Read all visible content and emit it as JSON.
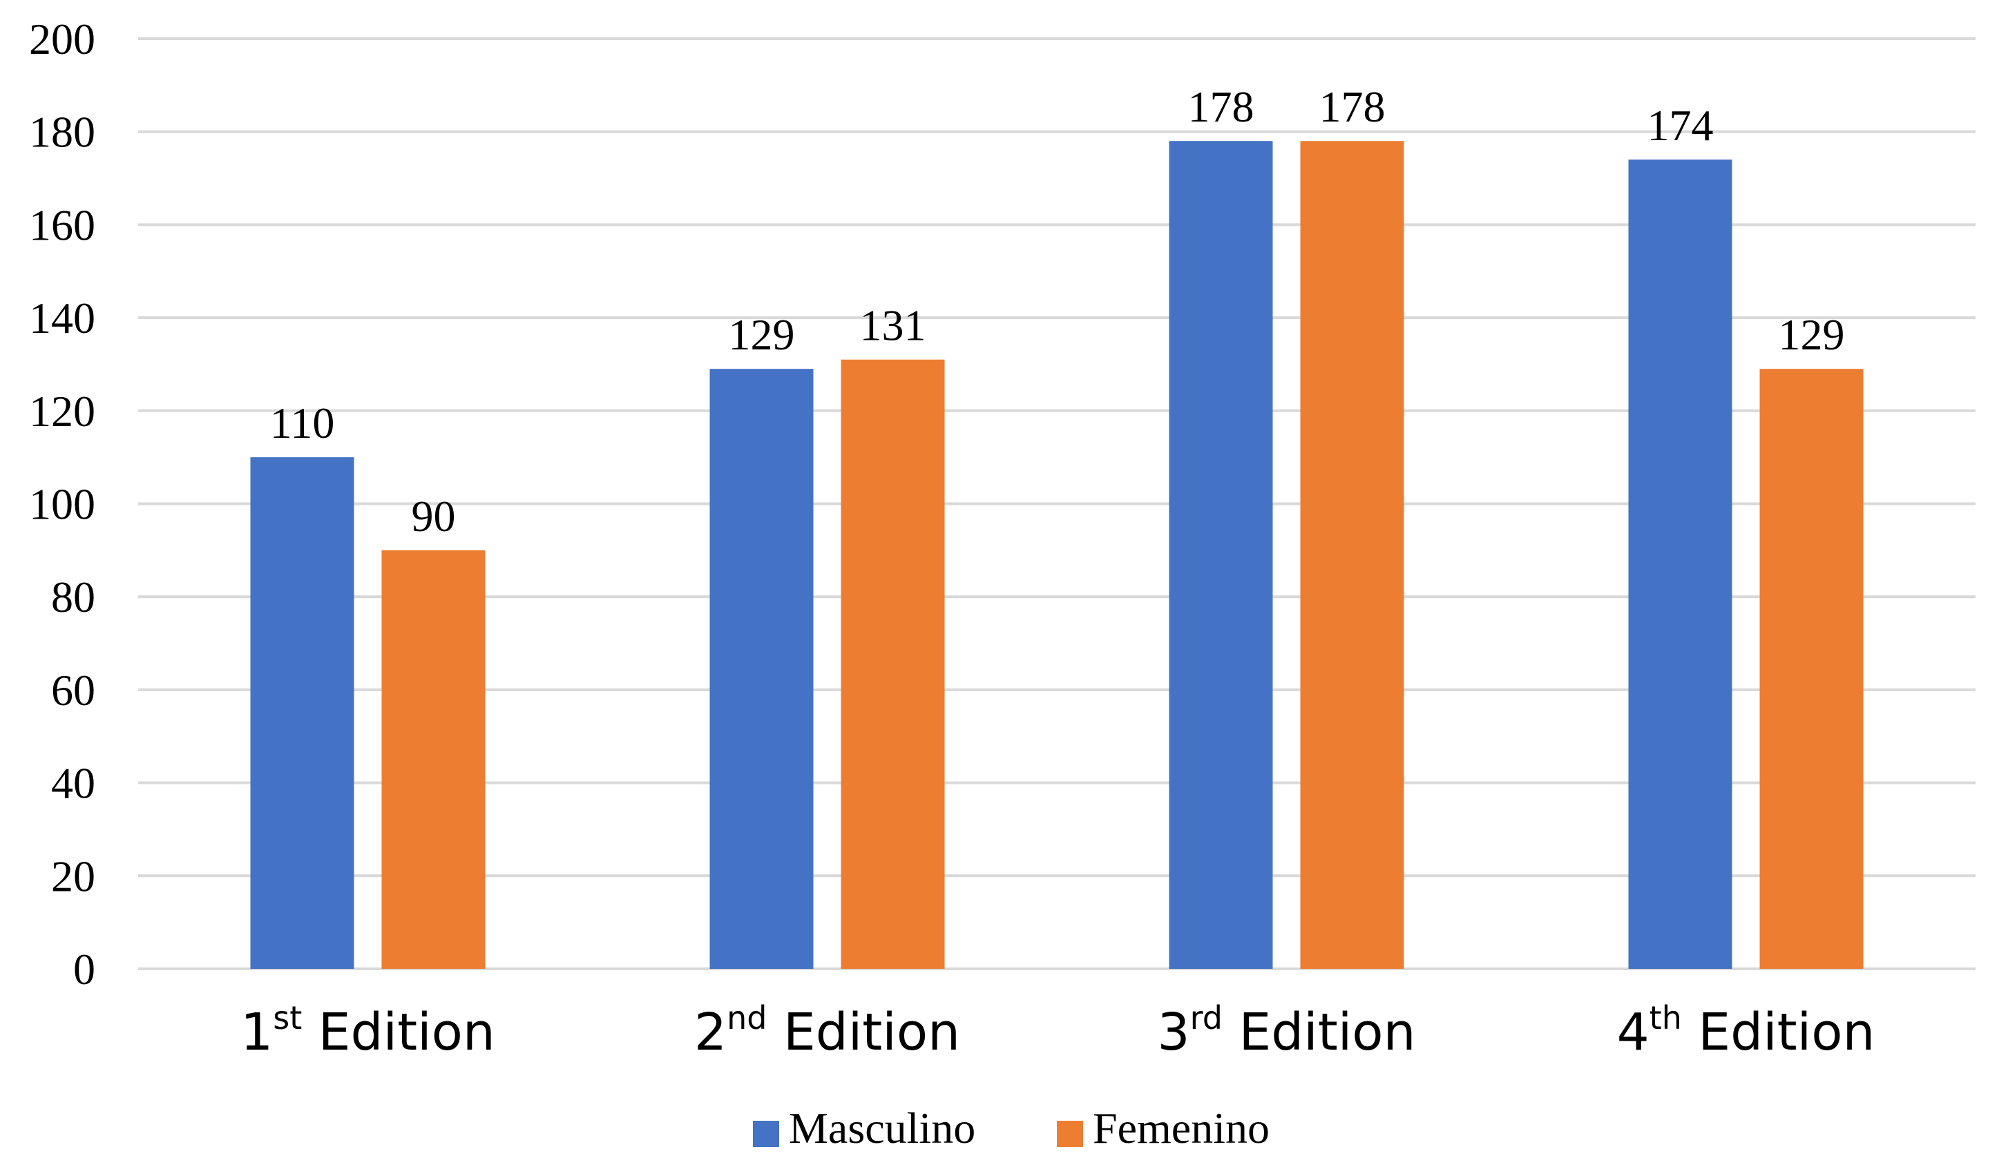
{
  "chart_data": {
    "type": "bar",
    "categories": [
      {
        "num": "1",
        "sup": "st",
        "rest": "Edition"
      },
      {
        "num": "2",
        "sup": "nd",
        "rest": "Edition"
      },
      {
        "num": "3",
        "sup": "rd",
        "rest": "Edition"
      },
      {
        "num": "4",
        "sup": "th",
        "rest": "Edition"
      }
    ],
    "series": [
      {
        "name": "Masculino",
        "color": "#4472c4",
        "values": [
          110,
          129,
          178,
          174
        ]
      },
      {
        "name": "Femenino",
        "color": "#ed7d31",
        "values": [
          90,
          131,
          178,
          129
        ]
      }
    ],
    "ylim": [
      0,
      200
    ],
    "yticks": [
      0,
      20,
      40,
      60,
      80,
      100,
      120,
      140,
      160,
      180,
      200
    ],
    "grid": true,
    "legend": "bottom-center",
    "title": "",
    "xlabel": "",
    "ylabel": ""
  }
}
